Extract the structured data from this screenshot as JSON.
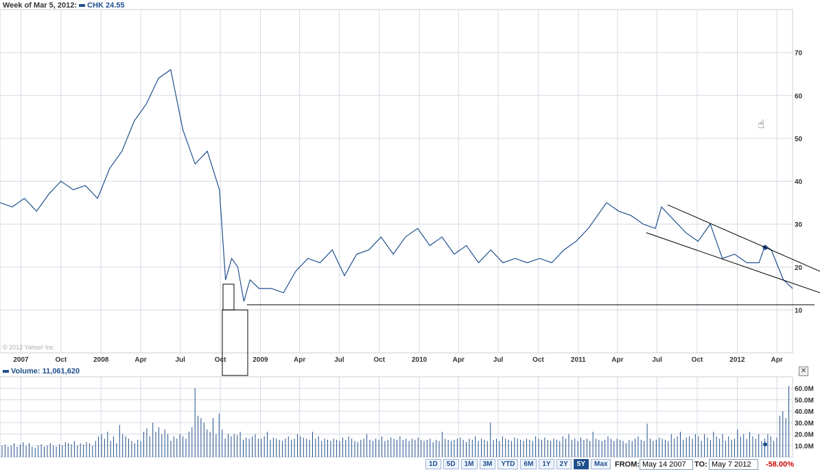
{
  "header": {
    "week_label": "Week of Mar 5, 2012:",
    "ticker_label": "CHK 24.55"
  },
  "volume_header": {
    "label": "Volume: 11,061,620"
  },
  "copyright": "© 2012 Yahoo! Inc.",
  "range_buttons": [
    "1D",
    "5D",
    "1M",
    "3M",
    "YTD",
    "6M",
    "1Y",
    "2Y",
    "5Y",
    "Max"
  ],
  "range_selected": "5Y",
  "from_label": "FROM:",
  "from_value": "May 14 2007",
  "to_label": "TO:",
  "to_value": "May 7 2012",
  "change_pct": "-58.00%",
  "colors": {
    "line": "#1f4e8c",
    "grid": "#d4d9e2",
    "accent": "#1f4e8c",
    "negative": "#cc0000"
  },
  "icons": {
    "close": "close-icon",
    "cursor": "hand-cursor-icon"
  },
  "chart_data": [
    {
      "type": "line",
      "name": "CHK",
      "ylim": [
        0,
        80
      ],
      "yticks": [
        10,
        20,
        30,
        40,
        50,
        60,
        70
      ],
      "xtick_labels": [
        "2007",
        "Oct",
        "2008",
        "Apr",
        "Jul",
        "Oct",
        "2009",
        "Apr",
        "Jul",
        "Oct",
        "2010",
        "Apr",
        "Jul",
        "Oct",
        "2011",
        "Apr",
        "Jul",
        "Oct",
        "2012",
        "Apr"
      ],
      "xticks": [
        "2007-07-01",
        "2007-10-01",
        "2008-01-01",
        "2008-04-01",
        "2008-07-01",
        "2008-10-01",
        "2009-01-01",
        "2009-04-01",
        "2009-07-01",
        "2009-10-01",
        "2010-01-01",
        "2010-04-01",
        "2010-07-01",
        "2010-10-01",
        "2011-01-01",
        "2011-04-01",
        "2011-07-01",
        "2011-10-01",
        "2012-01-01",
        "2012-04-01"
      ],
      "x": [
        "2007-05-14",
        "2007-06-11",
        "2007-07-09",
        "2007-08-06",
        "2007-09-03",
        "2007-10-01",
        "2007-10-29",
        "2007-11-26",
        "2007-12-24",
        "2008-01-21",
        "2008-02-18",
        "2008-03-17",
        "2008-04-14",
        "2008-05-12",
        "2008-06-09",
        "2008-07-07",
        "2008-08-04",
        "2008-09-01",
        "2008-09-29",
        "2008-10-13",
        "2008-10-27",
        "2008-11-10",
        "2008-11-24",
        "2008-12-08",
        "2008-12-29",
        "2009-01-26",
        "2009-02-23",
        "2009-03-23",
        "2009-04-20",
        "2009-05-18",
        "2009-06-15",
        "2009-07-13",
        "2009-08-10",
        "2009-09-07",
        "2009-10-05",
        "2009-11-02",
        "2009-11-30",
        "2009-12-28",
        "2010-01-25",
        "2010-02-22",
        "2010-03-22",
        "2010-04-19",
        "2010-05-17",
        "2010-06-14",
        "2010-07-12",
        "2010-08-09",
        "2010-09-06",
        "2010-10-04",
        "2010-11-01",
        "2010-11-29",
        "2010-12-27",
        "2011-01-24",
        "2011-02-21",
        "2011-03-07",
        "2011-04-04",
        "2011-05-02",
        "2011-05-30",
        "2011-06-27",
        "2011-07-11",
        "2011-08-08",
        "2011-09-05",
        "2011-10-03",
        "2011-10-31",
        "2011-11-28",
        "2011-12-26",
        "2012-01-23",
        "2012-02-20",
        "2012-03-05",
        "2012-03-19",
        "2012-04-16",
        "2012-05-07"
      ],
      "values": [
        35,
        34,
        36,
        33,
        37,
        40,
        38,
        39,
        36,
        43,
        47,
        54,
        58,
        64,
        66,
        52,
        44,
        47,
        38,
        17,
        22,
        20,
        12,
        17,
        15,
        15,
        14,
        19,
        22,
        21,
        24,
        18,
        23,
        24,
        27,
        23,
        27,
        29,
        25,
        27,
        23,
        25,
        21,
        24,
        21,
        22,
        21,
        22,
        21,
        24,
        26,
        29,
        33,
        35,
        33,
        32,
        30,
        29,
        34,
        31,
        28,
        26,
        30,
        22,
        23,
        21,
        21,
        25,
        24,
        17,
        15
      ]
    },
    {
      "type": "bar",
      "name": "Volume",
      "ylim": [
        0,
        70
      ],
      "yticks_labels": [
        "10.0M",
        "20.0M",
        "30.0M",
        "40.0M",
        "50.0M",
        "60.0M"
      ],
      "yticks": [
        10,
        20,
        30,
        40,
        50,
        60
      ],
      "unit": "M",
      "values": [
        10,
        11,
        9,
        10,
        12,
        9,
        11,
        13,
        10,
        12,
        9,
        8,
        10,
        11,
        9,
        10,
        12,
        10,
        9,
        11,
        10,
        13,
        12,
        11,
        14,
        10,
        12,
        11,
        13,
        12,
        10,
        14,
        18,
        20,
        16,
        22,
        14,
        18,
        12,
        28,
        20,
        18,
        16,
        14,
        12,
        15,
        14,
        22,
        25,
        18,
        30,
        22,
        26,
        20,
        24,
        20,
        14,
        18,
        16,
        20,
        18,
        16,
        22,
        26,
        60,
        36,
        34,
        30,
        24,
        22,
        34,
        20,
        38,
        24,
        16,
        20,
        18,
        20,
        19,
        22,
        15,
        17,
        16,
        18,
        20,
        16,
        16,
        18,
        22,
        15,
        17,
        16,
        15,
        14,
        16,
        18,
        15,
        16,
        20,
        18,
        17,
        16,
        15,
        22,
        16,
        18,
        14,
        16,
        15,
        14,
        16,
        15,
        14,
        17,
        15,
        18,
        16,
        14,
        13,
        15,
        16,
        20,
        15,
        14,
        16,
        15,
        18,
        14,
        15,
        17,
        16,
        15,
        18,
        15,
        16,
        14,
        16,
        15,
        17,
        15,
        14,
        15,
        16,
        13,
        15,
        14,
        22,
        16,
        15,
        14,
        15,
        16,
        17,
        15,
        13,
        16,
        15,
        18,
        14,
        16,
        15,
        14,
        30,
        15,
        16,
        14,
        18,
        16,
        15,
        14,
        17,
        16,
        15,
        14,
        16,
        15,
        14,
        18,
        16,
        15,
        17,
        15,
        14,
        16,
        15,
        14,
        18,
        16,
        20,
        15,
        16,
        14,
        17,
        15,
        16,
        14,
        22,
        16,
        15,
        14,
        15,
        18,
        16,
        14,
        16,
        15,
        14,
        12,
        15,
        14,
        16,
        18,
        15,
        14,
        29,
        16,
        14,
        15,
        17,
        16,
        15,
        14,
        20,
        16,
        18,
        22,
        15,
        17,
        18,
        16,
        20,
        18,
        14,
        20,
        17,
        15,
        22,
        18,
        16,
        20,
        14,
        18,
        15,
        16,
        24,
        18,
        20,
        16,
        22,
        18,
        16,
        20,
        14,
        16,
        20,
        18,
        14,
        17,
        36,
        40,
        34,
        62
      ]
    }
  ]
}
